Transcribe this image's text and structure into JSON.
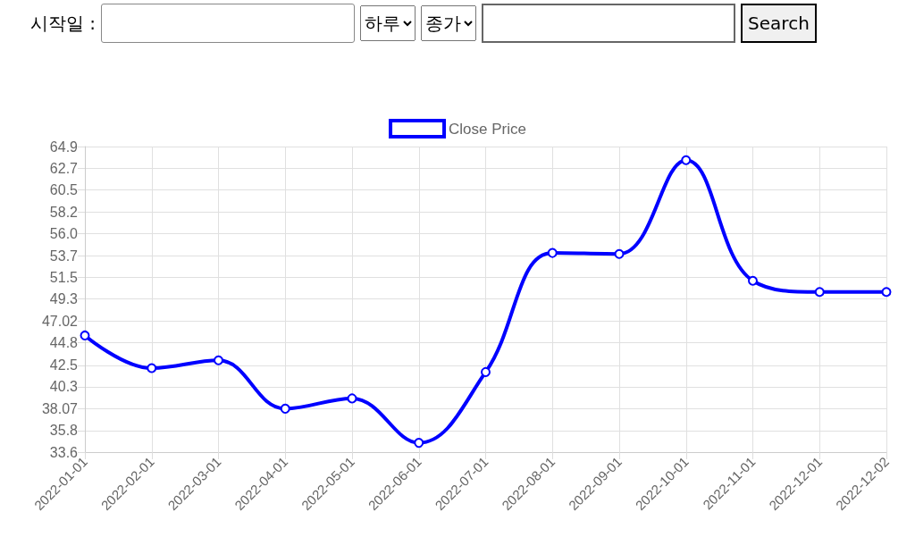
{
  "chart_data": {
    "type": "line",
    "annotations": [
      "시작일 :",
      "하루",
      "종가",
      "Search"
    ],
    "categories": [
      "2022-01-01",
      "2022-02-01",
      "2022-03-01",
      "2022-04-01",
      "2022-05-01",
      "2022-06-01",
      "2022-07-01",
      "2022-08-01",
      "2022-09-01",
      "2022-10-01",
      "2022-11-01",
      "2022-12-01",
      "2022-12-02"
    ],
    "series": [
      {
        "name": "Close Price",
        "color": "#0000ff",
        "values": [
          45.55,
          42.2,
          43.0,
          38.05,
          39.1,
          34.55,
          41.8,
          54.0,
          53.9,
          63.5,
          51.15,
          50.0,
          50.0
        ]
      }
    ],
    "ylim": [
      33.6,
      64.9
    ],
    "yticks": [
      33.6,
      35.8,
      38.07,
      40.3,
      42.5,
      44.8,
      47.02,
      49.3,
      51.5,
      53.7,
      {
        "value": 56,
        "label": "56.0"
      },
      58.2,
      60.5,
      62.7,
      64.9
    ],
    "grid": true,
    "legend": "top",
    "marker": "circle",
    "line_style": "solid"
  }
}
